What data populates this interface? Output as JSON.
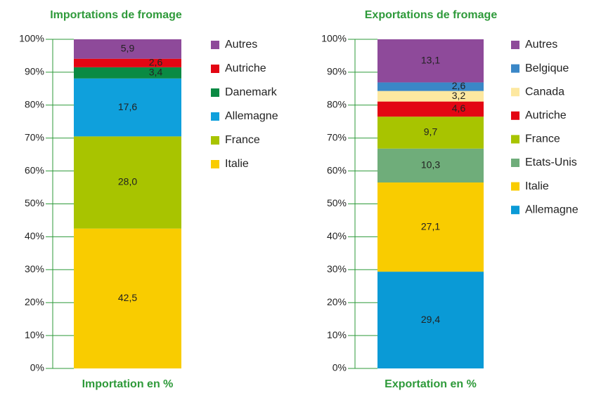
{
  "chart_data": [
    {
      "type": "stacked-bar",
      "title": "Importations de fromage",
      "categories": [
        "Importation en %"
      ],
      "ylim": [
        0,
        100
      ],
      "yticks": [
        {
          "value": 0,
          "label": "0%"
        },
        {
          "value": 10,
          "label": "10%"
        },
        {
          "value": 20,
          "label": "20%"
        },
        {
          "value": 30,
          "label": "30%"
        },
        {
          "value": 40,
          "label": "40%"
        },
        {
          "value": 50,
          "label": "50%"
        },
        {
          "value": 60,
          "label": "60%"
        },
        {
          "value": 70,
          "label": "70%"
        },
        {
          "value": 80,
          "label": "80%"
        },
        {
          "value": 90,
          "label": "90%"
        },
        {
          "value": 100,
          "label": "100%"
        }
      ],
      "series": [
        {
          "name": "Italie",
          "color": "#f9cc00",
          "values": [
            42.5
          ],
          "value_labels": [
            "42,5"
          ]
        },
        {
          "name": "France",
          "color": "#a8c400",
          "values": [
            28.0
          ],
          "value_labels": [
            "28,0"
          ]
        },
        {
          "name": "Allemagne",
          "color": "#0fa0dc",
          "values": [
            17.6
          ],
          "value_labels": [
            "17,6"
          ]
        },
        {
          "name": "Danemark",
          "color": "#0a8a43",
          "values": [
            3.4
          ],
          "value_labels": [
            "3,4"
          ]
        },
        {
          "name": "Autriche",
          "color": "#e30613",
          "values": [
            2.6
          ],
          "value_labels": [
            "2,6"
          ]
        },
        {
          "name": "Autres",
          "color": "#8e4a9a",
          "values": [
            5.9
          ],
          "value_labels": [
            "5,9"
          ]
        }
      ]
    },
    {
      "type": "stacked-bar",
      "title": "Exportations de fromage",
      "categories": [
        "Exportation en %"
      ],
      "ylim": [
        0,
        100
      ],
      "yticks": [
        {
          "value": 0,
          "label": "0%"
        },
        {
          "value": 10,
          "label": "10%"
        },
        {
          "value": 20,
          "label": "20%"
        },
        {
          "value": 30,
          "label": "30%"
        },
        {
          "value": 40,
          "label": "40%"
        },
        {
          "value": 50,
          "label": "50%"
        },
        {
          "value": 60,
          "label": "60%"
        },
        {
          "value": 70,
          "label": "70%"
        },
        {
          "value": 80,
          "label": "80%"
        },
        {
          "value": 90,
          "label": "90%"
        },
        {
          "value": 100,
          "label": "100%"
        }
      ],
      "series": [
        {
          "name": "Allemagne",
          "color": "#0a9ad6",
          "values": [
            29.4
          ],
          "value_labels": [
            "29,4"
          ]
        },
        {
          "name": "Italie",
          "color": "#f9cc00",
          "values": [
            27.1
          ],
          "value_labels": [
            "27,1"
          ]
        },
        {
          "name": "Etats-Unis",
          "color": "#6fad7a",
          "values": [
            10.3
          ],
          "value_labels": [
            "10,3"
          ]
        },
        {
          "name": "France",
          "color": "#a8c400",
          "values": [
            9.7
          ],
          "value_labels": [
            "9,7"
          ]
        },
        {
          "name": "Autriche",
          "color": "#e30613",
          "values": [
            4.6
          ],
          "value_labels": [
            "4,6"
          ]
        },
        {
          "name": "Canada",
          "color": "#fde8a0",
          "values": [
            3.2
          ],
          "value_labels": [
            "3,2"
          ]
        },
        {
          "name": "Belgique",
          "color": "#3a87c7",
          "values": [
            2.6
          ],
          "value_labels": [
            "2,6"
          ]
        },
        {
          "name": "Autres",
          "color": "#8e4a9a",
          "values": [
            13.1
          ],
          "value_labels": [
            "13,1"
          ]
        }
      ]
    }
  ]
}
